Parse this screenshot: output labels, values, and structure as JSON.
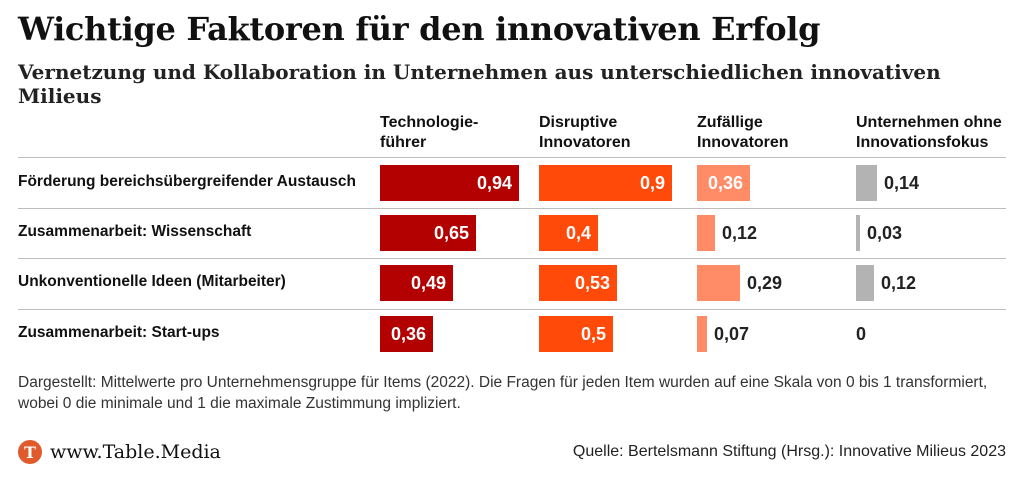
{
  "header": {
    "title": "Wichtige Faktoren für den innovativen Erfolg",
    "subtitle": "Vernetzung und Kollaboration in Unternehmen aus unterschiedlichen innovativen Milieus"
  },
  "chart_data": {
    "type": "bar",
    "categories": [
      "Förderung bereichsübergreifender Austausch",
      "Zusammenarbeit: Wissenschaft",
      "Unkonventionelle Ideen (Mitarbeiter)",
      "Zusammenarbeit: Start-ups"
    ],
    "series": [
      {
        "name": "Technologie-\nführer",
        "values": [
          0.94,
          0.65,
          0.49,
          0.36
        ],
        "labels": [
          "0,94",
          "0,65",
          "0,49",
          "0,36"
        ],
        "color": "#b30000"
      },
      {
        "name": "Disruptive\nInnovatoren",
        "values": [
          0.9,
          0.4,
          0.53,
          0.5
        ],
        "labels": [
          "0,9",
          "0,4",
          "0,53",
          "0,5"
        ],
        "color": "#ff4a0a"
      },
      {
        "name": "Zufällige\nInnovatoren",
        "values": [
          0.36,
          0.12,
          0.29,
          0.07
        ],
        "labels": [
          "0,36",
          "0,12",
          "0,29",
          "0,07"
        ],
        "color": "#ff8c66"
      },
      {
        "name": "Unternehmen ohne\nInnovationsfokus",
        "values": [
          0.14,
          0.03,
          0.12,
          0
        ],
        "labels": [
          "0,14",
          "0,03",
          "0,12",
          "0"
        ],
        "color": "#b3b3b3"
      }
    ],
    "xlim": [
      0,
      1
    ]
  },
  "footer": {
    "note": "Dargestellt: Mittelwerte pro Unternehmensgruppe für Items (2022). Die Fragen für jeden Item wurden auf eine Skala von 0 bis 1 transformiert, wobei 0 die  minimale und 1 die maximale Zustimmung impliziert.",
    "brand_icon": "T",
    "brand": "www.Table.Media",
    "source": "Quelle: Bertelsmann Stiftung (Hrsg.): Innovative Milieus 2023"
  }
}
